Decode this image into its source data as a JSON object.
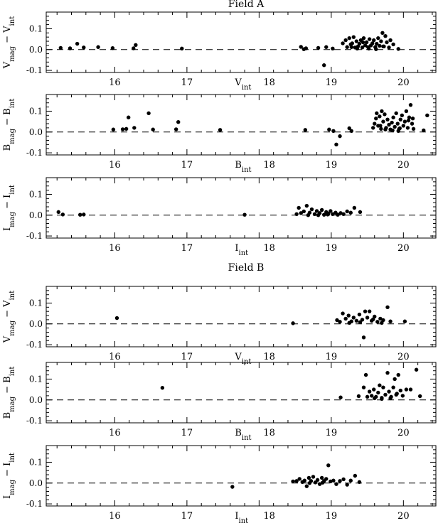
{
  "figure": {
    "field_titles": [
      "Field A",
      "Field B"
    ]
  },
  "chart_data": [
    {
      "type": "scatter",
      "field": "Field A",
      "ylabel": "V_mag - V_int",
      "xlabel": "V_int",
      "xlim": [
        15.05,
        20.45
      ],
      "ylim": [
        -0.11,
        0.18
      ],
      "xticks": [
        16,
        17,
        18,
        19,
        20
      ],
      "xtick_labels": [
        "16",
        "17",
        "18",
        "19",
        "20"
      ],
      "yticks": [
        -0.1,
        0.0,
        0.1
      ],
      "ytick_labels": [
        "-0.1",
        "0.0",
        "0.1"
      ],
      "reference_line": 0,
      "grid": false,
      "points": [
        [
          15.25,
          0.008
        ],
        [
          15.38,
          0.006
        ],
        [
          15.48,
          0.028
        ],
        [
          15.57,
          0.01
        ],
        [
          15.77,
          0.012
        ],
        [
          15.97,
          0.007
        ],
        [
          16.26,
          0.006
        ],
        [
          16.29,
          0.022
        ],
        [
          16.93,
          0.005
        ],
        [
          18.58,
          0.013
        ],
        [
          18.62,
          0.002
        ],
        [
          18.65,
          0.006
        ],
        [
          18.82,
          0.008
        ],
        [
          18.9,
          -0.075
        ],
        [
          18.93,
          0.012
        ],
        [
          19.02,
          0.005
        ],
        [
          19.16,
          0.03
        ],
        [
          19.2,
          0.045
        ],
        [
          19.22,
          0.012
        ],
        [
          19.25,
          0.055
        ],
        [
          19.27,
          0.025
        ],
        [
          19.29,
          0.03
        ],
        [
          19.31,
          0.06
        ],
        [
          19.33,
          0.01
        ],
        [
          19.35,
          0.04
        ],
        [
          19.37,
          0.015
        ],
        [
          19.39,
          0.028
        ],
        [
          19.41,
          0.045
        ],
        [
          19.43,
          0.01
        ],
        [
          19.45,
          0.055
        ],
        [
          19.47,
          0.02
        ],
        [
          19.49,
          0.035
        ],
        [
          19.51,
          0.012
        ],
        [
          19.53,
          0.05
        ],
        [
          19.55,
          0.02
        ],
        [
          19.57,
          0.03
        ],
        [
          19.59,
          0.045
        ],
        [
          19.61,
          0.012
        ],
        [
          19.63,
          0.028
        ],
        [
          19.65,
          0.055
        ],
        [
          19.67,
          0.018
        ],
        [
          19.69,
          0.04
        ],
        [
          19.71,
          0.08
        ],
        [
          19.73,
          0.015
        ],
        [
          19.75,
          0.065
        ],
        [
          19.77,
          0.035
        ],
        [
          19.8,
          0.01
        ],
        [
          19.82,
          0.045
        ],
        [
          19.86,
          0.025
        ],
        [
          19.93,
          0.003
        ],
        [
          19.28,
          0.012
        ],
        [
          19.36,
          0.005
        ],
        [
          19.44,
          0.035
        ],
        [
          19.52,
          0.005
        ],
        [
          19.62,
          0.002
        ],
        [
          19.72,
          0.015
        ]
      ]
    },
    {
      "type": "scatter",
      "field": "Field A",
      "ylabel": "B_mag - B_int",
      "xlabel": "B_int",
      "xlim": [
        15.05,
        20.45
      ],
      "ylim": [
        -0.11,
        0.18
      ],
      "xticks": [
        16,
        17,
        18,
        19,
        20
      ],
      "xtick_labels": [
        "16",
        "17",
        "18",
        "19",
        "20"
      ],
      "yticks": [
        -0.1,
        0.0,
        0.1
      ],
      "ytick_labels": [
        "-0.1",
        "0.0",
        "0.1"
      ],
      "reference_line": 0,
      "grid": false,
      "points": [
        [
          15.98,
          0.012
        ],
        [
          16.11,
          0.013
        ],
        [
          16.16,
          0.015
        ],
        [
          16.19,
          0.07
        ],
        [
          16.27,
          0.02
        ],
        [
          16.47,
          0.09
        ],
        [
          16.53,
          0.012
        ],
        [
          16.85,
          0.013
        ],
        [
          16.88,
          0.048
        ],
        [
          17.46,
          0.01
        ],
        [
          18.64,
          0.01
        ],
        [
          18.97,
          0.012
        ],
        [
          19.03,
          0.005
        ],
        [
          19.07,
          -0.06
        ],
        [
          19.12,
          -0.02
        ],
        [
          19.25,
          0.018
        ],
        [
          19.28,
          0.005
        ],
        [
          19.58,
          0.02
        ],
        [
          19.6,
          0.04
        ],
        [
          19.62,
          0.065
        ],
        [
          19.63,
          0.09
        ],
        [
          19.65,
          0.03
        ],
        [
          19.67,
          0.075
        ],
        [
          19.69,
          0.015
        ],
        [
          19.7,
          0.1
        ],
        [
          19.72,
          0.05
        ],
        [
          19.74,
          0.085
        ],
        [
          19.76,
          0.02
        ],
        [
          19.78,
          0.06
        ],
        [
          19.8,
          0.035
        ],
        [
          19.82,
          0.012
        ],
        [
          19.84,
          0.045
        ],
        [
          19.86,
          0.07
        ],
        [
          19.88,
          0.025
        ],
        [
          19.9,
          0.09
        ],
        [
          19.92,
          0.04
        ],
        [
          19.94,
          0.015
        ],
        [
          19.96,
          0.06
        ],
        [
          19.98,
          0.08
        ],
        [
          20.0,
          0.03
        ],
        [
          20.02,
          0.05
        ],
        [
          20.04,
          0.1
        ],
        [
          20.06,
          0.02
        ],
        [
          20.08,
          0.07
        ],
        [
          20.1,
          0.13
        ],
        [
          20.12,
          0.04
        ],
        [
          20.14,
          0.015
        ],
        [
          20.28,
          0.008
        ],
        [
          20.33,
          0.08
        ],
        [
          19.75,
          0.012
        ],
        [
          19.85,
          0.008
        ],
        [
          19.95,
          0.018
        ],
        [
          20.07,
          0.055
        ],
        [
          19.68,
          0.03
        ],
        [
          19.93,
          0.005
        ],
        [
          20.13,
          0.065
        ]
      ]
    },
    {
      "type": "scatter",
      "field": "Field A",
      "ylabel": "I_mag - I_int",
      "xlabel": "I_int",
      "xlim": [
        15.05,
        20.45
      ],
      "ylim": [
        -0.11,
        0.18
      ],
      "xticks": [
        16,
        17,
        18,
        19,
        20
      ],
      "xtick_labels": [
        "16",
        "17",
        "18",
        "19",
        "20"
      ],
      "yticks": [
        -0.1,
        0.0,
        0.1
      ],
      "ytick_labels": [
        "-0.1",
        "0.0",
        "0.1"
      ],
      "reference_line": 0,
      "grid": false,
      "points": [
        [
          15.22,
          0.015
        ],
        [
          15.28,
          0.003
        ],
        [
          15.52,
          0.002
        ],
        [
          15.57,
          0.003
        ],
        [
          17.8,
          0.002
        ],
        [
          18.52,
          0.005
        ],
        [
          18.55,
          0.035
        ],
        [
          18.58,
          0.01
        ],
        [
          18.62,
          0.018
        ],
        [
          18.66,
          0.045
        ],
        [
          18.7,
          0.012
        ],
        [
          18.73,
          0.028
        ],
        [
          18.77,
          0.005
        ],
        [
          18.8,
          0.02
        ],
        [
          18.84,
          0.01
        ],
        [
          18.87,
          0.025
        ],
        [
          18.9,
          0.002
        ],
        [
          18.93,
          0.015
        ],
        [
          18.96,
          0.008
        ],
        [
          18.99,
          0.02
        ],
        [
          19.02,
          0.005
        ],
        [
          19.06,
          0.012
        ],
        [
          19.09,
          0.002
        ],
        [
          19.13,
          0.01
        ],
        [
          19.17,
          0.005
        ],
        [
          19.22,
          0.018
        ],
        [
          19.27,
          0.012
        ],
        [
          19.32,
          0.035
        ],
        [
          19.4,
          0.015
        ],
        [
          18.68,
          0.0
        ],
        [
          18.82,
          0.0
        ],
        [
          18.95,
          0.003
        ]
      ]
    },
    {
      "type": "scatter",
      "field": "Field B",
      "ylabel": "V_mag - V_int",
      "xlabel": "V_int",
      "xlim": [
        15.05,
        20.45
      ],
      "ylim": [
        -0.11,
        0.18
      ],
      "xticks": [
        16,
        17,
        18,
        19,
        20
      ],
      "xtick_labels": [
        "16",
        "17",
        "18",
        "19",
        "20"
      ],
      "yticks": [
        -0.1,
        0.0,
        0.1
      ],
      "ytick_labels": [
        "-0.1",
        "0.0",
        "0.1"
      ],
      "reference_line": 0,
      "grid": false,
      "points": [
        [
          16.03,
          0.028
        ],
        [
          18.47,
          0.003
        ],
        [
          19.08,
          0.018
        ],
        [
          19.12,
          0.01
        ],
        [
          19.16,
          0.05
        ],
        [
          19.2,
          0.025
        ],
        [
          19.24,
          0.04
        ],
        [
          19.28,
          0.012
        ],
        [
          19.31,
          0.03
        ],
        [
          19.35,
          0.015
        ],
        [
          19.39,
          0.045
        ],
        [
          19.43,
          0.02
        ],
        [
          19.45,
          -0.065
        ],
        [
          19.47,
          0.06
        ],
        [
          19.5,
          0.03
        ],
        [
          19.53,
          0.06
        ],
        [
          19.56,
          0.015
        ],
        [
          19.6,
          0.035
        ],
        [
          19.64,
          0.01
        ],
        [
          19.68,
          0.025
        ],
        [
          19.72,
          0.018
        ],
        [
          19.78,
          0.08
        ],
        [
          19.82,
          0.012
        ],
        [
          20.02,
          0.012
        ],
        [
          19.25,
          0.005
        ],
        [
          19.4,
          0.008
        ],
        [
          19.58,
          0.022
        ],
        [
          19.7,
          0.005
        ]
      ]
    },
    {
      "type": "scatter",
      "field": "Field B",
      "ylabel": "B_mag - B_int",
      "xlabel": "B_int",
      "xlim": [
        15.05,
        20.45
      ],
      "ylim": [
        -0.11,
        0.18
      ],
      "xticks": [
        16,
        17,
        18,
        19,
        20
      ],
      "xtick_labels": [
        "16",
        "17",
        "18",
        "19",
        "20"
      ],
      "yticks": [
        -0.1,
        0.0,
        0.1
      ],
      "ytick_labels": [
        "-0.1",
        "0.0",
        "0.1"
      ],
      "reference_line": 0,
      "grid": false,
      "points": [
        [
          16.66,
          0.058
        ],
        [
          19.13,
          0.012
        ],
        [
          19.38,
          0.018
        ],
        [
          19.45,
          0.06
        ],
        [
          19.48,
          0.12
        ],
        [
          19.5,
          0.015
        ],
        [
          19.53,
          0.04
        ],
        [
          19.56,
          0.02
        ],
        [
          19.59,
          0.05
        ],
        [
          19.62,
          0.015
        ],
        [
          19.65,
          0.035
        ],
        [
          19.67,
          0.07
        ],
        [
          19.7,
          0.01
        ],
        [
          19.72,
          0.06
        ],
        [
          19.75,
          0.025
        ],
        [
          19.78,
          0.13
        ],
        [
          19.8,
          0.04
        ],
        [
          19.83,
          0.015
        ],
        [
          19.86,
          0.06
        ],
        [
          19.88,
          0.1
        ],
        [
          19.91,
          0.03
        ],
        [
          19.93,
          0.12
        ],
        [
          19.96,
          0.045
        ],
        [
          19.99,
          0.02
        ],
        [
          20.04,
          0.05
        ],
        [
          20.1,
          0.05
        ],
        [
          20.18,
          0.145
        ],
        [
          20.23,
          0.018
        ],
        [
          19.6,
          0.008
        ],
        [
          19.7,
          0.005
        ],
        [
          19.82,
          0.008
        ],
        [
          19.9,
          0.025
        ]
      ]
    },
    {
      "type": "scatter",
      "field": "Field B",
      "ylabel": "I_mag - I_int",
      "xlabel": "I_int",
      "xlim": [
        15.05,
        20.45
      ],
      "ylim": [
        -0.11,
        0.18
      ],
      "xticks": [
        16,
        17,
        18,
        19,
        20
      ],
      "xtick_labels": [
        "16",
        "17",
        "18",
        "19",
        "20"
      ],
      "yticks": [
        -0.1,
        0.0,
        0.1
      ],
      "ytick_labels": [
        "-0.1",
        "0.0",
        "0.1"
      ],
      "reference_line": 0,
      "grid": false,
      "points": [
        [
          17.63,
          -0.018
        ],
        [
          18.47,
          0.008
        ],
        [
          18.52,
          0.01
        ],
        [
          18.56,
          0.02
        ],
        [
          18.6,
          0.005
        ],
        [
          18.63,
          0.012
        ],
        [
          18.66,
          -0.015
        ],
        [
          18.69,
          0.025
        ],
        [
          18.72,
          0.01
        ],
        [
          18.75,
          0.03
        ],
        [
          18.78,
          0.003
        ],
        [
          18.81,
          0.015
        ],
        [
          18.84,
          -0.005
        ],
        [
          18.87,
          0.025
        ],
        [
          18.9,
          0.01
        ],
        [
          18.93,
          0.02
        ],
        [
          18.96,
          0.085
        ],
        [
          18.99,
          0.008
        ],
        [
          19.03,
          0.012
        ],
        [
          19.07,
          -0.005
        ],
        [
          19.12,
          0.01
        ],
        [
          19.17,
          0.018
        ],
        [
          19.22,
          -0.008
        ],
        [
          19.27,
          0.012
        ],
        [
          19.33,
          0.035
        ],
        [
          19.39,
          0.005
        ],
        [
          18.7,
          0.0
        ],
        [
          18.88,
          0.002
        ]
      ]
    }
  ]
}
